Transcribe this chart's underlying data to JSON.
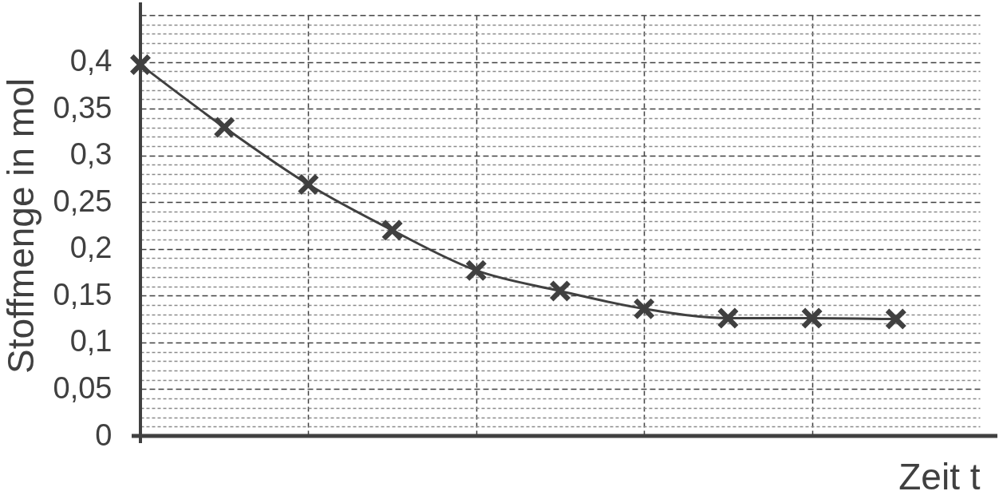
{
  "chart_data": {
    "type": "line",
    "xlabel": "Zeit t",
    "ylabel": "Stoffmenge in mol",
    "categories": [
      null,
      null,
      null,
      null,
      null,
      null,
      null,
      null,
      null,
      null
    ],
    "series": [
      {
        "color": "#404040",
        "values": [
          0.397,
          0.33,
          0.269,
          0.22,
          0.177,
          0.155,
          0.136,
          0.126,
          0.126,
          0.125
        ]
      }
    ],
    "ylim": [
      0,
      0.45
    ],
    "yticks": [
      0,
      {
        "value": 0.01,
        "label": null
      },
      {
        "value": 0.02,
        "label": null
      },
      {
        "value": 0.03,
        "label": null
      },
      {
        "value": 0.04,
        "label": null
      },
      {
        "value": 0.05,
        "label": "0,05"
      },
      {
        "value": 0.06,
        "label": null
      },
      {
        "value": 0.07,
        "label": null
      },
      {
        "value": 0.08,
        "label": null
      },
      {
        "value": 0.09,
        "label": null
      },
      {
        "value": 0.1,
        "label": "0,1"
      },
      {
        "value": 0.11,
        "label": null
      },
      {
        "value": 0.12,
        "label": null
      },
      {
        "value": 0.13,
        "label": null
      },
      {
        "value": 0.14,
        "label": null
      },
      {
        "value": 0.15,
        "label": "0,15"
      },
      {
        "value": 0.16,
        "label": null
      },
      {
        "value": 0.17,
        "label": null
      },
      {
        "value": 0.18,
        "label": null
      },
      {
        "value": 0.19,
        "label": null
      },
      {
        "value": 0.2,
        "label": "0,2"
      },
      {
        "value": 0.21,
        "label": null
      },
      {
        "value": 0.22,
        "label": null
      },
      {
        "value": 0.23,
        "label": null
      },
      {
        "value": 0.24,
        "label": null
      },
      {
        "value": 0.25,
        "label": "0,25"
      },
      {
        "value": 0.26,
        "label": null
      },
      {
        "value": 0.27,
        "label": null
      },
      {
        "value": 0.28,
        "label": null
      },
      {
        "value": 0.29,
        "label": null
      },
      {
        "value": 0.3,
        "label": "0,3"
      },
      {
        "value": 0.31,
        "label": null
      },
      {
        "value": 0.32,
        "label": null
      },
      {
        "value": 0.33,
        "label": null
      },
      {
        "value": 0.34,
        "label": null
      },
      {
        "value": 0.35,
        "label": "0,35"
      },
      {
        "value": 0.36,
        "label": null
      },
      {
        "value": 0.37,
        "label": null
      },
      {
        "value": 0.38,
        "label": null
      },
      {
        "value": 0.39,
        "label": null
      },
      {
        "value": 0.4,
        "label": "0,4"
      },
      {
        "value": 0.41,
        "label": null
      },
      {
        "value": 0.42,
        "label": null
      },
      {
        "value": 0.43,
        "label": null
      },
      {
        "value": 0.44,
        "label": null
      },
      {
        "value": 0.45,
        "label": null
      }
    ],
    "grid": true,
    "marker": "cross",
    "line_style": "solid",
    "tick_labels": "y"
  }
}
